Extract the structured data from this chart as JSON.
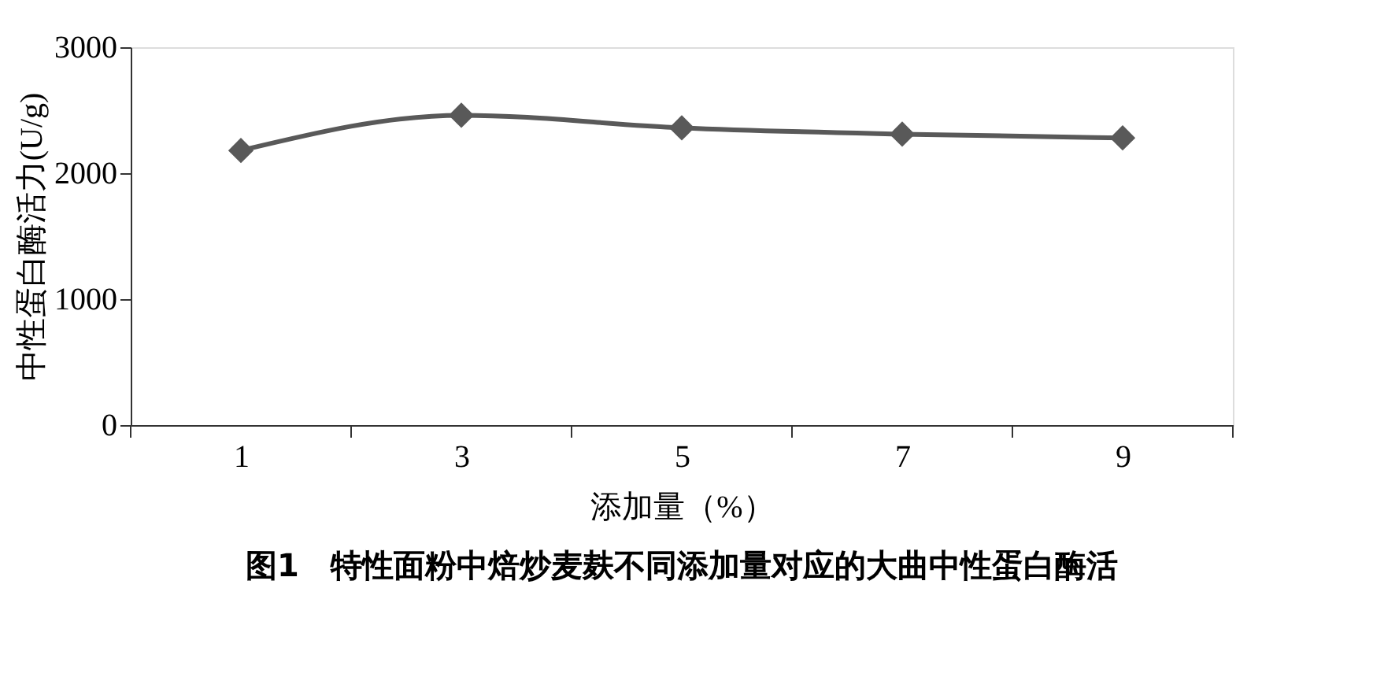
{
  "chart_data": {
    "type": "line",
    "title": "图1　特性面粉中焙炒麦麸不同添加量对应的大曲中性蛋白酶活",
    "xlabel": "添加量（%）",
    "ylabel": "中性蛋白酶活力(U/g)",
    "categories": [
      "1",
      "3",
      "5",
      "7",
      "9"
    ],
    "series": [
      {
        "color": "#595959",
        "values": [
          2180,
          2460,
          2360,
          2310,
          2280
        ]
      }
    ],
    "ylim": [
      0,
      3000
    ],
    "yticks": [
      0,
      1000,
      2000,
      3000
    ],
    "grid": false,
    "legend": false,
    "marker": "diamond",
    "line_style": "solid"
  }
}
